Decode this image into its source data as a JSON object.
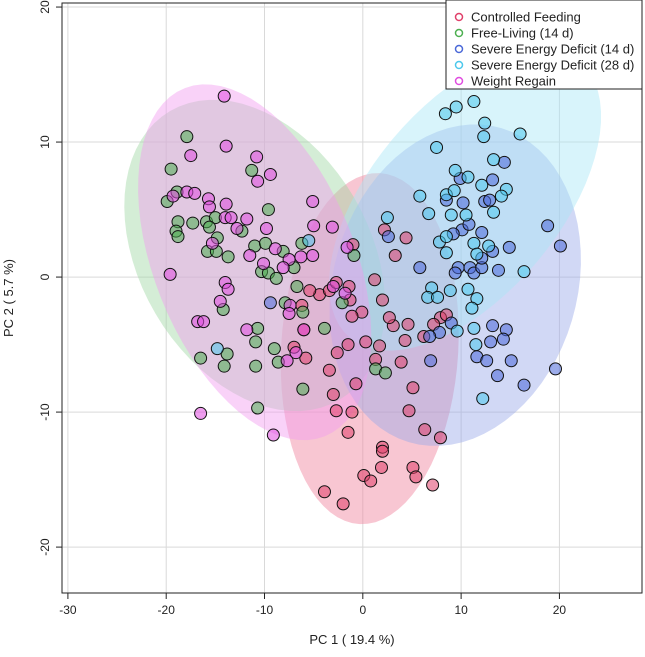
{
  "chart_data": {
    "type": "scatter",
    "title": "",
    "xlabel": "PC 1 ( 19.4 %)",
    "ylabel": "PC 2 ( 5.7 %)",
    "xlim": [
      -30.6,
      28.4
    ],
    "ylim": [
      -23.4,
      20.3
    ],
    "xticks": [
      -30,
      -20,
      -10,
      0,
      10,
      20
    ],
    "yticks": [
      -20,
      -10,
      0,
      10,
      20
    ],
    "grid": true,
    "legend_position": "top-right",
    "series": [
      {
        "name": "Controlled Feeding",
        "color": "#e0406a",
        "fill": "#f0819c",
        "ellipse": {
          "center": [
            0.7,
            -5.3
          ],
          "axis1": [
            1.0,
            13.0
          ],
          "axis2": [
            9.0,
            -0.3
          ]
        },
        "points": [
          [
            -1.0,
            2.4
          ],
          [
            2.2,
            3.5
          ],
          [
            4.4,
            2.9
          ],
          [
            3.3,
            1.6
          ],
          [
            1.2,
            -0.2
          ],
          [
            2.0,
            -1.7
          ],
          [
            3.1,
            -3.6
          ],
          [
            4.3,
            -4.7
          ],
          [
            0.3,
            -4.8
          ],
          [
            1.7,
            -5.1
          ],
          [
            1.3,
            -6.1
          ],
          [
            -1.5,
            -5.0
          ],
          [
            -2.6,
            -5.6
          ],
          [
            -3.4,
            -6.9
          ],
          [
            -0.7,
            -7.9
          ],
          [
            -1.1,
            -10.0
          ],
          [
            -2.7,
            -9.9
          ],
          [
            -1.5,
            -11.5
          ],
          [
            0.1,
            -14.7
          ],
          [
            1.9,
            -14.1
          ],
          [
            5.1,
            -14.1
          ],
          [
            5.4,
            -14.8
          ],
          [
            7.9,
            -11.9
          ],
          [
            6.3,
            -11.3
          ],
          [
            4.7,
            -9.9
          ],
          [
            5.1,
            -8.2
          ],
          [
            3.9,
            -6.3
          ],
          [
            7.9,
            -3.0
          ],
          [
            6.2,
            -4.4
          ],
          [
            -0.1,
            -2.6
          ],
          [
            -1.1,
            -2.9
          ],
          [
            -1.3,
            -1.7
          ],
          [
            -1.4,
            -0.7
          ],
          [
            -4.4,
            -1.3
          ],
          [
            -6.2,
            -2.1
          ],
          [
            -5.4,
            -1.0
          ],
          [
            -3.4,
            -1.0
          ],
          [
            -2.7,
            -0.4
          ],
          [
            -2.0,
            -16.8
          ],
          [
            -3.9,
            -15.9
          ],
          [
            7.1,
            -15.4
          ],
          [
            0.8,
            -15.1
          ],
          [
            2.0,
            -12.6
          ],
          [
            2.0,
            -12.9
          ],
          [
            4.6,
            -3.5
          ],
          [
            2.7,
            -3.0
          ],
          [
            7.2,
            -3.5
          ],
          [
            8.5,
            -2.8
          ],
          [
            -6.0,
            -3.9
          ],
          [
            -7.0,
            -5.2
          ],
          [
            -5.8,
            -6.0
          ],
          [
            -3.0,
            -8.7
          ]
        ]
      },
      {
        "name": "Free-Living (14 d)",
        "color": "#4caf50",
        "fill": "#9fd6a3",
        "ellipse": {
          "center": [
            -11.0,
            1.6
          ],
          "axis1": [
            8.6,
            -10.7
          ],
          "axis2": [
            10.1,
            4.3
          ]
        },
        "points": [
          [
            -17.9,
            10.4
          ],
          [
            -19.5,
            8.0
          ],
          [
            -11.3,
            7.9
          ],
          [
            -18.9,
            6.3
          ],
          [
            -19.9,
            5.6
          ],
          [
            -18.8,
            4.1
          ],
          [
            -17.3,
            4.0
          ],
          [
            -19.0,
            3.4
          ],
          [
            -18.8,
            3.0
          ],
          [
            -15.9,
            4.1
          ],
          [
            -15.0,
            4.4
          ],
          [
            -15.6,
            3.7
          ],
          [
            -9.6,
            5.0
          ],
          [
            -12.3,
            3.4
          ],
          [
            -14.8,
            2.9
          ],
          [
            -15.8,
            1.9
          ],
          [
            -14.9,
            1.9
          ],
          [
            -13.7,
            1.5
          ],
          [
            -11.0,
            2.3
          ],
          [
            -9.9,
            2.5
          ],
          [
            -8.1,
            1.9
          ],
          [
            -10.3,
            0.4
          ],
          [
            -9.6,
            0.3
          ],
          [
            -8.8,
            -0.1
          ],
          [
            -7.0,
            0.7
          ],
          [
            -6.2,
            2.5
          ],
          [
            -0.9,
            1.6
          ],
          [
            -14.2,
            -2.4
          ],
          [
            -10.7,
            -3.8
          ],
          [
            -10.9,
            -4.8
          ],
          [
            -9.0,
            -5.3
          ],
          [
            -13.8,
            -5.7
          ],
          [
            -16.5,
            -6.0
          ],
          [
            -14.1,
            -6.6
          ],
          [
            -10.9,
            -6.6
          ],
          [
            -8.6,
            -6.3
          ],
          [
            -6.1,
            -2.6
          ],
          [
            -6.7,
            -0.7
          ],
          [
            -7.9,
            -1.9
          ],
          [
            -2.1,
            -1.9
          ],
          [
            -3.9,
            -3.8
          ],
          [
            -6.1,
            -8.3
          ],
          [
            -10.7,
            -9.7
          ],
          [
            1.3,
            -6.8
          ],
          [
            2.3,
            -7.1
          ]
        ]
      },
      {
        "name": "Severe Energy Deficit (14 d)",
        "color": "#4a68d8",
        "fill": "#9aa8e8",
        "ellipse": {
          "center": [
            9.4,
            -0.6
          ],
          "axis1": [
            1.5,
            11.9
          ],
          "axis2": [
            12.7,
            0.5
          ]
        },
        "points": [
          [
            14.4,
            8.5
          ],
          [
            13.2,
            7.2
          ],
          [
            9.9,
            7.3
          ],
          [
            8.5,
            5.7
          ],
          [
            10.2,
            5.5
          ],
          [
            12.4,
            5.6
          ],
          [
            12.9,
            5.7
          ],
          [
            18.8,
            3.8
          ],
          [
            20.1,
            2.3
          ],
          [
            2.6,
            3.0
          ],
          [
            5.8,
            0.7
          ],
          [
            9.7,
            0.7
          ],
          [
            9.4,
            0.3
          ],
          [
            10.9,
            0.7
          ],
          [
            11.3,
            0.3
          ],
          [
            12.1,
            0.7
          ],
          [
            13.8,
            0.5
          ],
          [
            10.1,
            3.5
          ],
          [
            9.2,
            3.2
          ],
          [
            10.8,
            3.9
          ],
          [
            12.1,
            3.3
          ],
          [
            13.2,
            1.9
          ],
          [
            14.9,
            2.2
          ],
          [
            12.1,
            1.4
          ],
          [
            9.0,
            -3.4
          ],
          [
            7.8,
            -4.1
          ],
          [
            6.8,
            -4.4
          ],
          [
            13.2,
            -3.6
          ],
          [
            14.6,
            -3.9
          ],
          [
            14.3,
            -4.6
          ],
          [
            13.0,
            -4.8
          ],
          [
            11.6,
            -5.9
          ],
          [
            12.6,
            -6.2
          ],
          [
            15.1,
            -6.2
          ],
          [
            6.9,
            -6.2
          ],
          [
            13.7,
            -7.3
          ],
          [
            19.6,
            -6.8
          ],
          [
            16.4,
            -8.0
          ],
          [
            -9.4,
            -1.9
          ]
        ]
      },
      {
        "name": "Severe Energy Deficit (28 d)",
        "color": "#4cc8ec",
        "fill": "#a8e6f6",
        "ellipse": {
          "center": [
            10.4,
            5.7
          ],
          "axis1": [
            11.7,
            10.2
          ],
          "axis2": [
            7.4,
            -4.5
          ]
        },
        "points": [
          [
            8.4,
            12.1
          ],
          [
            9.5,
            12.6
          ],
          [
            11.3,
            13.0
          ],
          [
            12.4,
            11.4
          ],
          [
            12.3,
            10.4
          ],
          [
            16.0,
            10.6
          ],
          [
            7.5,
            9.6
          ],
          [
            13.3,
            8.7
          ],
          [
            9.4,
            7.9
          ],
          [
            10.7,
            7.4
          ],
          [
            5.8,
            6.0
          ],
          [
            6.7,
            4.7
          ],
          [
            2.5,
            4.4
          ],
          [
            8.5,
            6.1
          ],
          [
            9.3,
            6.4
          ],
          [
            12.1,
            6.8
          ],
          [
            14.6,
            6.5
          ],
          [
            14.1,
            6.0
          ],
          [
            13.3,
            4.8
          ],
          [
            9.0,
            4.6
          ],
          [
            10.5,
            4.6
          ],
          [
            7.8,
            2.6
          ],
          [
            8.5,
            3.0
          ],
          [
            8.5,
            1.8
          ],
          [
            11.3,
            2.5
          ],
          [
            11.6,
            1.7
          ],
          [
            12.8,
            2.3
          ],
          [
            16.4,
            0.4
          ],
          [
            7.0,
            -0.8
          ],
          [
            6.6,
            -1.5
          ],
          [
            7.6,
            -1.5
          ],
          [
            8.9,
            -1.0
          ],
          [
            10.7,
            -0.9
          ],
          [
            11.6,
            -1.6
          ],
          [
            11.1,
            -2.3
          ],
          [
            9.6,
            -4.0
          ],
          [
            11.3,
            -3.8
          ],
          [
            11.5,
            -5.0
          ],
          [
            12.2,
            -9.0
          ],
          [
            -14.8,
            -5.3
          ],
          [
            -5.5,
            2.7
          ]
        ]
      },
      {
        "name": "Weight Regain",
        "color": "#e04ce0",
        "fill": "#f29cf0",
        "ellipse": {
          "center": [
            -11.0,
            1.1
          ],
          "axis1": [
            7.1,
            -12.9
          ],
          "axis2": [
            9.5,
            2.7
          ]
        },
        "points": [
          [
            -14.1,
            13.4
          ],
          [
            -13.9,
            9.7
          ],
          [
            -17.5,
            9.0
          ],
          [
            -10.8,
            8.9
          ],
          [
            -9.4,
            7.6
          ],
          [
            -10.7,
            7.1
          ],
          [
            -17.9,
            6.3
          ],
          [
            -17.1,
            6.2
          ],
          [
            -19.3,
            6.0
          ],
          [
            -15.7,
            5.8
          ],
          [
            -15.6,
            5.2
          ],
          [
            -13.9,
            5.4
          ],
          [
            -14.0,
            4.4
          ],
          [
            -13.4,
            4.4
          ],
          [
            -11.8,
            4.3
          ],
          [
            -12.8,
            3.6
          ],
          [
            -9.8,
            3.6
          ],
          [
            -15.3,
            2.5
          ],
          [
            -5.1,
            5.6
          ],
          [
            -5.0,
            3.8
          ],
          [
            -3.1,
            3.7
          ],
          [
            -1.6,
            2.2
          ],
          [
            -8.9,
            2.1
          ],
          [
            -10.1,
            1.0
          ],
          [
            -11.5,
            1.6
          ],
          [
            -7.5,
            1.3
          ],
          [
            -8.1,
            0.7
          ],
          [
            -6.3,
            1.5
          ],
          [
            -5.1,
            1.6
          ],
          [
            -19.6,
            0.2
          ],
          [
            -14.0,
            -0.4
          ],
          [
            -13.7,
            -0.9
          ],
          [
            -14.5,
            -1.8
          ],
          [
            -16.8,
            -3.3
          ],
          [
            -16.2,
            -3.3
          ],
          [
            -11.8,
            -3.9
          ],
          [
            -7.4,
            -2.1
          ],
          [
            -7.5,
            -2.7
          ],
          [
            -6.0,
            -3.9
          ],
          [
            -7.7,
            -6.2
          ],
          [
            -6.8,
            -5.6
          ],
          [
            -3.0,
            -0.7
          ],
          [
            -1.8,
            -1.2
          ],
          [
            -16.5,
            -10.1
          ],
          [
            -9.1,
            -11.7
          ]
        ]
      }
    ]
  }
}
